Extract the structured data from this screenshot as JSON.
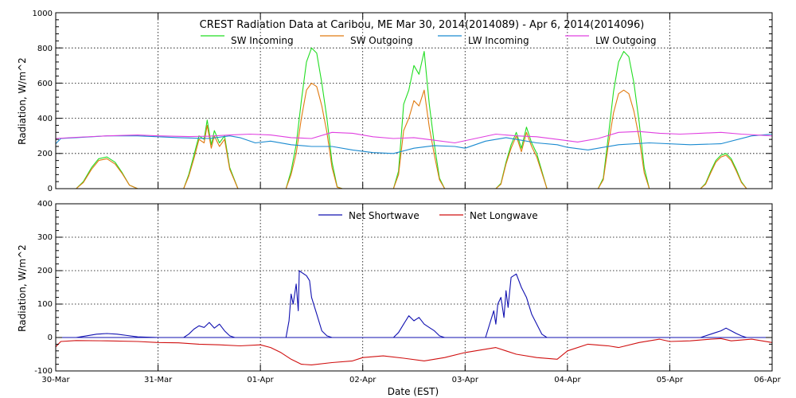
{
  "chart_data": [
    {
      "type": "line",
      "title": "CREST Radiation Data at Caribou, ME   Mar 30, 2014(2014089) - Apr  6, 2014(2014096)",
      "ylabel": "Radiation, W/m^2",
      "xlabel": "",
      "ylim": [
        0,
        1000
      ],
      "yticks": [
        "0",
        "200",
        "400",
        "600",
        "800",
        "1000"
      ],
      "xlim_days": [
        0,
        7
      ],
      "grid": true,
      "legend_placement": "top",
      "series": [
        {
          "name": "SW Incoming",
          "color": "#22dd22",
          "x": [
            0,
            0.2,
            0.27,
            0.35,
            0.42,
            0.5,
            0.58,
            0.65,
            0.72,
            0.8,
            1.0,
            1.25,
            1.3,
            1.35,
            1.4,
            1.45,
            1.48,
            1.52,
            1.55,
            1.6,
            1.65,
            1.7,
            1.78,
            2.0,
            2.25,
            2.3,
            2.35,
            2.4,
            2.45,
            2.5,
            2.55,
            2.6,
            2.65,
            2.7,
            2.75,
            2.8,
            2.85,
            2.9,
            3.0,
            3.3,
            3.35,
            3.4,
            3.45,
            3.5,
            3.55,
            3.6,
            3.65,
            3.7,
            3.75,
            3.8,
            3.85,
            3.9,
            4.0,
            4.3,
            4.35,
            4.4,
            4.45,
            4.5,
            4.55,
            4.6,
            4.65,
            4.7,
            4.75,
            4.8,
            5.0,
            5.3,
            5.35,
            5.4,
            5.45,
            5.5,
            5.55,
            5.6,
            5.65,
            5.7,
            5.75,
            5.8,
            6.0,
            6.3,
            6.35,
            6.4,
            6.45,
            6.5,
            6.55,
            6.6,
            6.65,
            6.7,
            6.75,
            7.0
          ],
          "y": [
            0,
            0,
            40,
            120,
            170,
            180,
            150,
            90,
            20,
            0,
            0,
            0,
            80,
            190,
            300,
            280,
            390,
            250,
            330,
            260,
            300,
            120,
            0,
            0,
            0,
            100,
            250,
            500,
            720,
            800,
            770,
            600,
            400,
            150,
            10,
            0,
            0,
            0,
            0,
            0,
            100,
            480,
            560,
            700,
            650,
            780,
            480,
            250,
            60,
            0,
            0,
            0,
            0,
            0,
            30,
            150,
            250,
            320,
            230,
            350,
            260,
            200,
            100,
            0,
            0,
            0,
            60,
            300,
            550,
            720,
            780,
            750,
            600,
            380,
            120,
            0,
            0,
            0,
            30,
            100,
            160,
            190,
            200,
            170,
            110,
            40,
            0,
            0
          ]
        },
        {
          "name": "SW Outgoing",
          "color": "#e07a10",
          "x": [
            0,
            0.2,
            0.27,
            0.35,
            0.42,
            0.5,
            0.58,
            0.65,
            0.72,
            0.8,
            1.0,
            1.25,
            1.3,
            1.35,
            1.4,
            1.45,
            1.48,
            1.52,
            1.55,
            1.6,
            1.65,
            1.7,
            1.78,
            2.0,
            2.25,
            2.3,
            2.35,
            2.4,
            2.45,
            2.5,
            2.55,
            2.6,
            2.65,
            2.7,
            2.75,
            2.8,
            2.85,
            2.9,
            3.0,
            3.3,
            3.35,
            3.4,
            3.45,
            3.5,
            3.55,
            3.6,
            3.65,
            3.7,
            3.75,
            3.8,
            3.85,
            3.9,
            4.0,
            4.3,
            4.35,
            4.4,
            4.45,
            4.5,
            4.55,
            4.6,
            4.65,
            4.7,
            4.75,
            4.8,
            5.0,
            5.3,
            5.35,
            5.4,
            5.45,
            5.5,
            5.55,
            5.6,
            5.65,
            5.7,
            5.75,
            5.8,
            6.0,
            6.3,
            6.35,
            6.4,
            6.45,
            6.5,
            6.55,
            6.6,
            6.65,
            6.7,
            6.75,
            7.0
          ],
          "y": [
            0,
            0,
            35,
            110,
            160,
            170,
            140,
            85,
            20,
            0,
            0,
            0,
            70,
            170,
            280,
            260,
            360,
            230,
            300,
            240,
            280,
            110,
            0,
            0,
            0,
            80,
            200,
            400,
            560,
            600,
            580,
            470,
            320,
            120,
            8,
            0,
            0,
            0,
            0,
            0,
            80,
            330,
            400,
            500,
            470,
            560,
            350,
            190,
            50,
            0,
            0,
            0,
            0,
            0,
            25,
            140,
            230,
            300,
            210,
            320,
            240,
            180,
            90,
            0,
            0,
            0,
            50,
            250,
            430,
            540,
            560,
            540,
            440,
            290,
            90,
            0,
            0,
            0,
            25,
            90,
            150,
            180,
            190,
            160,
            100,
            35,
            0,
            0
          ]
        },
        {
          "name": "LW Incoming",
          "color": "#1a8ad0",
          "x": [
            0,
            0.05,
            0.2,
            0.5,
            0.8,
            1.0,
            1.2,
            1.5,
            1.7,
            1.8,
            1.95,
            2.1,
            2.3,
            2.5,
            2.7,
            2.9,
            3.1,
            3.3,
            3.5,
            3.7,
            3.9,
            4.0,
            4.2,
            4.4,
            4.5,
            4.7,
            4.9,
            5.0,
            5.2,
            5.5,
            5.8,
            6.2,
            6.5,
            6.8,
            7.0
          ],
          "y": [
            255,
            285,
            290,
            300,
            300,
            295,
            290,
            285,
            300,
            290,
            260,
            270,
            250,
            240,
            240,
            220,
            205,
            200,
            230,
            245,
            240,
            230,
            270,
            290,
            280,
            260,
            250,
            235,
            220,
            250,
            260,
            250,
            255,
            300,
            310
          ]
        },
        {
          "name": "LW Outgoing",
          "color": "#e040e0",
          "x": [
            0,
            0.2,
            0.5,
            0.8,
            1.0,
            1.3,
            1.5,
            1.7,
            1.9,
            2.1,
            2.3,
            2.5,
            2.7,
            2.9,
            3.1,
            3.3,
            3.5,
            3.7,
            3.9,
            4.1,
            4.3,
            4.5,
            4.7,
            4.9,
            5.1,
            5.3,
            5.5,
            5.7,
            5.9,
            6.1,
            6.3,
            6.5,
            6.7,
            7.0
          ],
          "y": [
            285,
            292,
            300,
            305,
            300,
            296,
            298,
            305,
            310,
            305,
            290,
            285,
            320,
            315,
            295,
            285,
            290,
            275,
            260,
            285,
            310,
            300,
            295,
            280,
            265,
            285,
            320,
            325,
            315,
            310,
            315,
            320,
            310,
            300
          ]
        }
      ]
    },
    {
      "type": "line",
      "title": "",
      "ylabel": "Radiation, W/m^2",
      "xlabel": "Date (EST)",
      "ylim": [
        -100,
        400
      ],
      "yticks": [
        "-100",
        "0",
        "100",
        "200",
        "300",
        "400"
      ],
      "xlim_days": [
        0,
        7
      ],
      "categories": [
        "30-Mar",
        "31-Mar",
        "01-Apr",
        "02-Apr",
        "03-Apr",
        "04-Apr",
        "05-Apr",
        "06-Apr"
      ],
      "grid": true,
      "legend_placement": "top",
      "series": [
        {
          "name": "Net Shortwave",
          "color": "#1010b0",
          "x": [
            0,
            0.2,
            0.3,
            0.4,
            0.5,
            0.6,
            0.7,
            0.8,
            1.0,
            1.25,
            1.3,
            1.35,
            1.4,
            1.45,
            1.5,
            1.55,
            1.6,
            1.65,
            1.7,
            1.75,
            2.0,
            2.25,
            2.28,
            2.3,
            2.32,
            2.35,
            2.37,
            2.38,
            2.4,
            2.45,
            2.48,
            2.5,
            2.55,
            2.6,
            2.65,
            2.7,
            2.75,
            3.0,
            3.25,
            3.3,
            3.35,
            3.4,
            3.45,
            3.5,
            3.55,
            3.6,
            3.65,
            3.7,
            3.75,
            3.8,
            3.9,
            4.0,
            4.2,
            4.25,
            4.28,
            4.3,
            4.32,
            4.35,
            4.38,
            4.4,
            4.42,
            4.45,
            4.5,
            4.55,
            4.6,
            4.65,
            4.7,
            4.75,
            4.8,
            5.0,
            5.3,
            5.35,
            5.4,
            5.45,
            5.5,
            5.55,
            5.6,
            5.65,
            5.7,
            5.75,
            5.8,
            6.0,
            6.3,
            6.35,
            6.4,
            6.45,
            6.5,
            6.55,
            6.6,
            6.65,
            6.7,
            6.75,
            7.0
          ],
          "y": [
            0,
            0,
            5,
            10,
            12,
            10,
            6,
            2,
            0,
            0,
            10,
            25,
            35,
            30,
            45,
            28,
            40,
            20,
            5,
            0,
            0,
            0,
            50,
            130,
            100,
            160,
            80,
            200,
            195,
            185,
            170,
            120,
            70,
            20,
            5,
            0,
            0,
            0,
            0,
            0,
            15,
            40,
            65,
            50,
            60,
            40,
            30,
            20,
            5,
            0,
            0,
            0,
            0,
            50,
            80,
            40,
            100,
            120,
            60,
            140,
            90,
            180,
            190,
            150,
            120,
            70,
            40,
            10,
            0,
            0,
            0,
            0,
            0,
            0,
            0,
            0,
            0,
            0,
            0,
            0,
            0,
            0,
            0,
            5,
            10,
            15,
            20,
            28,
            20,
            12,
            5,
            0,
            0
          ]
        },
        {
          "name": "Net Longwave",
          "color": "#d01010",
          "x": [
            0,
            0.05,
            0.2,
            0.5,
            0.8,
            1.0,
            1.2,
            1.4,
            1.6,
            1.8,
            2.0,
            2.1,
            2.2,
            2.3,
            2.4,
            2.5,
            2.7,
            2.9,
            3.0,
            3.2,
            3.4,
            3.6,
            3.8,
            4.0,
            4.1,
            4.2,
            4.3,
            4.4,
            4.5,
            4.7,
            4.9,
            5.0,
            5.2,
            5.4,
            5.5,
            5.7,
            5.9,
            6.0,
            6.2,
            6.4,
            6.5,
            6.6,
            6.8,
            7.0
          ],
          "y": [
            -28,
            -12,
            -9,
            -10,
            -12,
            -15,
            -16,
            -20,
            -22,
            -25,
            -22,
            -30,
            -45,
            -65,
            -80,
            -82,
            -75,
            -70,
            -60,
            -55,
            -62,
            -70,
            -60,
            -45,
            -40,
            -35,
            -30,
            -40,
            -50,
            -60,
            -65,
            -40,
            -20,
            -25,
            -30,
            -15,
            -5,
            -12,
            -10,
            -5,
            -3,
            -10,
            -5,
            -15
          ]
        }
      ]
    }
  ]
}
